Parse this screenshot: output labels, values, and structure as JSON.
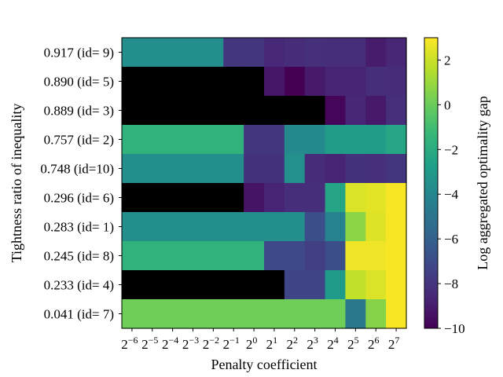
{
  "chart_data": {
    "type": "heatmap",
    "title": "",
    "xlabel": "Penalty coefficient",
    "ylabel": "Tightness ratio of inequality",
    "colorbar_label": "Log aggregated optimality gap",
    "colormap": "viridis",
    "missing_color": "#000000",
    "value_range": [
      -10,
      3
    ],
    "colorbar_ticks": [
      2,
      0,
      -2,
      -4,
      -6,
      -8,
      -10
    ],
    "colorbar_tick_labels": [
      "2",
      "0",
      "−2",
      "−4",
      "−6",
      "−8",
      "−10"
    ],
    "x_tick_labels": [
      {
        "base": "2",
        "exp": "−6"
      },
      {
        "base": "2",
        "exp": "−5"
      },
      {
        "base": "2",
        "exp": "−4"
      },
      {
        "base": "2",
        "exp": "−3"
      },
      {
        "base": "2",
        "exp": "−2"
      },
      {
        "base": "2",
        "exp": "−1"
      },
      {
        "base": "2",
        "exp": "0"
      },
      {
        "base": "2",
        "exp": "1"
      },
      {
        "base": "2",
        "exp": "2"
      },
      {
        "base": "2",
        "exp": "3"
      },
      {
        "base": "2",
        "exp": "4"
      },
      {
        "base": "2",
        "exp": "5"
      },
      {
        "base": "2",
        "exp": "6"
      },
      {
        "base": "2",
        "exp": "7"
      }
    ],
    "rows": [
      {
        "label": "0.917 (id= 9)",
        "values": [
          -3.6,
          -3.6,
          -3.6,
          -3.6,
          -3.6,
          -3.6,
          -3.6,
          -3.6,
          -3.6,
          -3.6,
          -3.6,
          -3.6,
          -3.6,
          -3.6,
          -3.6,
          -3.6,
          -3.6,
          -3.6,
          -3.6,
          -3.6,
          -3.6,
          -3.6,
          -3.6,
          -3.6,
          -3.6,
          -3.6,
          -3.6,
          -3.6,
          -3.6,
          -3.6,
          -3.6,
          -3.6,
          -3.6,
          -3.6,
          -3.6,
          -3.6,
          -3.6,
          -3.6,
          -3.6,
          -3.6,
          -3.6,
          -3.6,
          -3.6,
          -3.6,
          -3.6,
          -3.6,
          -3.6,
          -3.6,
          -3.6,
          -3.6,
          -3.6,
          -3.6,
          -3.6,
          -3.6,
          -3.6,
          -3.6,
          -3.6,
          -3.6,
          -3.6,
          -3.6,
          -3.6,
          -3.6,
          -3.6,
          -3.6,
          -3.6,
          -3.6,
          -3.6,
          -3.6,
          -3.6,
          -3.6,
          -3.6,
          -3.6,
          -3.6,
          -3.6,
          -3.6,
          -3.6,
          -3.6,
          -3.6,
          -3.6,
          -3.6,
          -3.6,
          -3.6,
          -3.6,
          -3.6,
          -3.6,
          -3.6,
          -3.6,
          -3.6,
          -3.6,
          -3.6,
          -3.6,
          -3.6,
          -3.6,
          -3.6,
          -3.6,
          -3.6,
          -3.6,
          -3.6,
          -3.6,
          -3.6,
          -3.6,
          -3.6,
          -3.6,
          -3.6,
          -3.6,
          -3.6,
          -3.6,
          -3.6,
          -3.6,
          -3.6,
          -3.6,
          -3.6,
          -3.6,
          -3.6,
          -3.6,
          -3.6,
          -3.6,
          -3.6,
          -3.6,
          -3.6,
          -3.6,
          -3.6,
          -3.6,
          -3.6,
          -3.6,
          -3.6,
          -3.6,
          -3.6,
          -3.6,
          -3.6,
          -8.0,
          -8.0,
          -8.0,
          -8.0,
          -8.0,
          -8.0,
          -8.0,
          -8.0,
          -8.0,
          -8.0,
          -8.0,
          -8.0,
          -8.0,
          -8.0,
          -8.0,
          -8.0,
          -8.0,
          -8.0,
          -8.0,
          -8.0,
          -8.0,
          -8.0,
          -8.0,
          -8.0,
          -8.0,
          -8.0,
          -8.0,
          -8.0,
          -8.0,
          -8.0,
          -8.0,
          -8.0,
          -8.0,
          -8.0,
          -8.0,
          -8.0,
          -8.0,
          -8.0,
          -8.0,
          -8.0,
          -8.0,
          -8.0,
          -8.0,
          -8.0,
          -8.0,
          -8.0,
          -8.0,
          -8.0,
          -8.0,
          -8.0,
          -8.0,
          -8.0,
          -8.5,
          -8.5,
          -8.5,
          -8.5,
          -8.5,
          -8.5,
          -8.5,
          -8.5,
          -8.5,
          -8.5,
          -8.5,
          -8.5,
          -8.5,
          -8.5,
          -8.5,
          -8.5,
          -8.5,
          -8.5,
          -8.5,
          -8.5,
          -8.5,
          -8.5,
          -8.5,
          -8.5,
          -8.5,
          -8.5,
          -8.5,
          -8.5,
          -8.5,
          -8.5,
          -8.5,
          -8.5,
          -8.5,
          -8.5,
          -8.5,
          -8.5,
          -8.5,
          -8.5,
          -8.5,
          -8.5,
          -8.5,
          -8.5,
          -8.5,
          -8.5,
          -8.5,
          -8.5,
          -8.5,
          -8.5,
          -8.5,
          -8.5,
          -8.5,
          -8.5,
          -8.4,
          -8.4,
          -8.4,
          -8.4,
          -8.4,
          -8.4,
          -8.4,
          -8.4,
          -8.4,
          -8.4,
          -8.4,
          -8.4,
          -8.4,
          -8.4,
          -8.4,
          -8.4,
          -8.4,
          -8.4,
          -8.4,
          -8.4,
          -8.4,
          -8.4,
          -8.4,
          -8.4,
          -8.4,
          -8.4,
          -8.4,
          -8.4,
          -8.4,
          -8.4,
          -8.4,
          -8.4,
          -8.4,
          -8.4,
          -8.4,
          -8.4,
          -8.4,
          -8.4,
          -8.4,
          -8.4,
          -8.4,
          -8.4,
          -8.4,
          -8.4,
          -8.4,
          -8.4,
          -8.4,
          -8.4,
          -8.4,
          -8.4,
          -8.4,
          -8.4,
          -8.2,
          -8.2,
          -8.2,
          -8.2,
          -8.2,
          -8.2,
          -8.2,
          -8.2,
          -8.2,
          -8.2,
          -8.2,
          -8.2,
          -8.2,
          -8.2,
          -8.2,
          -8.2,
          -8.2,
          -8.2,
          -8.2,
          -8.2,
          -8.2,
          -8.2,
          -8.2,
          -8.2,
          -8.2,
          -8.2,
          -8.2,
          -8.2,
          -8.2,
          -8.2,
          -8.2,
          -8.2,
          -8.2,
          -8.2,
          -8.2,
          -8.2,
          -8.2,
          -8.2,
          -8.2,
          -8.2,
          -8.2,
          -8.2,
          -8.2,
          -8.2,
          -8.2,
          -8.2,
          -8.2,
          -8.2,
          -8.2,
          -8.2,
          -8.2,
          -8.2,
          -8.3,
          -8.3,
          -8.3,
          -8.3,
          -8.3,
          -8.3,
          -8.3,
          -8.3,
          -8.3,
          -8.3,
          -8.3,
          -8.3,
          -8.3,
          -8.3,
          -8.3,
          -8.3,
          -8.3,
          -8.3,
          -8.3,
          -8.3,
          -8.3,
          -8.3,
          -8.3,
          -8.3,
          -8.3,
          -8.3,
          -8.3,
          -8.3,
          -8.3,
          -8.3,
          -8.3,
          -8.3,
          -8.3,
          -8.3,
          -8.3,
          -8.3,
          -8.3,
          -8.3,
          -8.3,
          -8.3,
          -8.3,
          -8.3,
          -8.3,
          -8.3,
          -8.3,
          -8.3,
          -8.3,
          -8.3,
          -8.3,
          -8.3,
          -8.3,
          -8.3,
          -8.3,
          -8.3,
          -8.3,
          -8.3,
          -8.3,
          -8.3,
          -8.3,
          -8.3,
          -8.3,
          -8.3,
          -8.3,
          -8.3,
          -8.3,
          -8.3,
          -8.3,
          -8.3,
          -8.3,
          -8.3,
          -8.3,
          -8.3,
          -8.3,
          -8.3,
          -8.3,
          -8.3,
          -8.3,
          -8.3,
          -8.3,
          -8.3,
          -8.3,
          -8.3,
          -8.3,
          -8.3,
          -8.3,
          -8.3,
          -8.3,
          -8.3,
          -8.3,
          -8.3,
          -8.3,
          -8.3,
          -8.3,
          -8.3,
          -8.3,
          -8.3,
          -8.3,
          -8.3,
          -8.3,
          -8.3,
          -8.3,
          -8.3,
          -8.3,
          -8.3,
          -8.3,
          -8.3,
          -8.3,
          -8.3,
          -8.3,
          -8.3,
          -8.3,
          -8.3,
          -8.3,
          -8.3,
          -8.3,
          -8.3,
          -8.3,
          -8.3,
          -8.3,
          -8.3,
          -8.3,
          -8.3,
          -8.3,
          -8.3,
          -8.3,
          -8.3,
          -8.3,
          -8.3,
          -8.3,
          -8.3,
          -8.3,
          -8.3,
          -8.3,
          -8.3,
          -8.3,
          -8.3,
          -8.3,
          -8.3,
          -8.3,
          -8.3,
          -9.0,
          -9.0,
          -9.0,
          -9.0,
          -9.0,
          -9.0,
          -9.0,
          -9.0,
          -9.0,
          -9.0,
          -9.0,
          -9.0,
          -9.0,
          -9.0,
          -9.0,
          -9.0,
          -9.0,
          -9.0,
          -9.0,
          -9.0,
          -9.0,
          -9.0,
          -9.0,
          -9.0,
          -9.0,
          -9.0,
          -9.0,
          -9.0,
          -9.0,
          -9.0,
          -9.0,
          -9.0,
          -9.0,
          -9.0,
          -9.0,
          -9.0,
          -9.0,
          -9.0,
          -9.0,
          -9.0,
          -9.0,
          -9.0,
          -9.0,
          -9.0,
          -9.0,
          -9.0,
          -9.0,
          -9.0,
          -9.0,
          -9.0,
          -9.0,
          -9.0,
          -8.6,
          -8.6,
          -8.6,
          -8.6,
          -8.6,
          -8.6,
          -8.6,
          -8.6,
          -8.6,
          -8.6,
          -8.6,
          -8.6,
          -8.6,
          -8.6,
          -8.6,
          -8.6,
          -8.6,
          -8.6,
          -8.6,
          -8.6,
          -8.6,
          -8.6,
          -8.6,
          -8.6,
          -8.6,
          -8.6,
          -8.6,
          -8.6,
          -8.6,
          -8.6,
          -8.6,
          -8.6,
          -8.6,
          -8.6,
          -8.6,
          -8.6,
          -8.6,
          -8.6,
          -8.6,
          -8.6,
          -8.6,
          -8.6,
          -8.6,
          -8.6,
          -8.6,
          -8.6,
          -8.6,
          -8.6,
          -8.6,
          -8.6,
          -8.6,
          -8.6
        ]
      }
    ]
  }
}
